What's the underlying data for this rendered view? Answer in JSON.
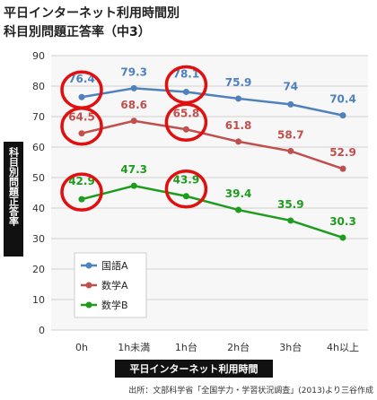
{
  "chart_data": {
    "type": "line",
    "title": "平日インターネット利用時間別",
    "subtitle": "科目別問題正答率（中3）",
    "xlabel": "平日インターネット利用時間",
    "ylabel": "科目別問題正答率",
    "categories": [
      "0h",
      "1h未満",
      "1h台",
      "2h台",
      "3h台",
      "4h以上"
    ],
    "ylim": [
      0,
      90
    ],
    "yticks": [
      0,
      10,
      20,
      30,
      40,
      50,
      60,
      70,
      80,
      90
    ],
    "grid": true,
    "legend_position": "lower-left",
    "series": [
      {
        "name": "国語A",
        "color": "#4f81bd",
        "values": [
          76.4,
          79.3,
          78.1,
          75.9,
          74,
          70.4
        ],
        "labels": [
          "76.4",
          "79.3",
          "78.1",
          "75.9",
          "74",
          "70.4"
        ]
      },
      {
        "name": "数学A",
        "color": "#c0504d",
        "values": [
          64.5,
          68.6,
          65.8,
          61.8,
          58.7,
          52.9
        ],
        "labels": [
          "64.5",
          "68.6",
          "65.8",
          "61.8",
          "58.7",
          "52.9"
        ]
      },
      {
        "name": "数学B",
        "color": "#1e9c1e",
        "values": [
          42.9,
          47.3,
          43.9,
          39.4,
          35.9,
          30.3
        ],
        "labels": [
          "42.9",
          "47.3",
          "43.9",
          "39.4",
          "35.9",
          "30.3"
        ]
      }
    ],
    "annotations": [
      {
        "type": "circle",
        "series": 0,
        "index": 0
      },
      {
        "type": "circle",
        "series": 0,
        "index": 2
      },
      {
        "type": "circle",
        "series": 1,
        "index": 0
      },
      {
        "type": "circle",
        "series": 1,
        "index": 2
      },
      {
        "type": "circle",
        "series": 2,
        "index": 0
      },
      {
        "type": "circle",
        "series": 2,
        "index": 2
      }
    ],
    "source": "出所：文部科学省「全国学力・学習状況調査」(2013)より三谷作成"
  },
  "colors": {
    "annotation": "#e01010",
    "axis_label_bg": "#111111",
    "plot_bg": "#f7f7f7",
    "grid": "#d0d0d0"
  }
}
